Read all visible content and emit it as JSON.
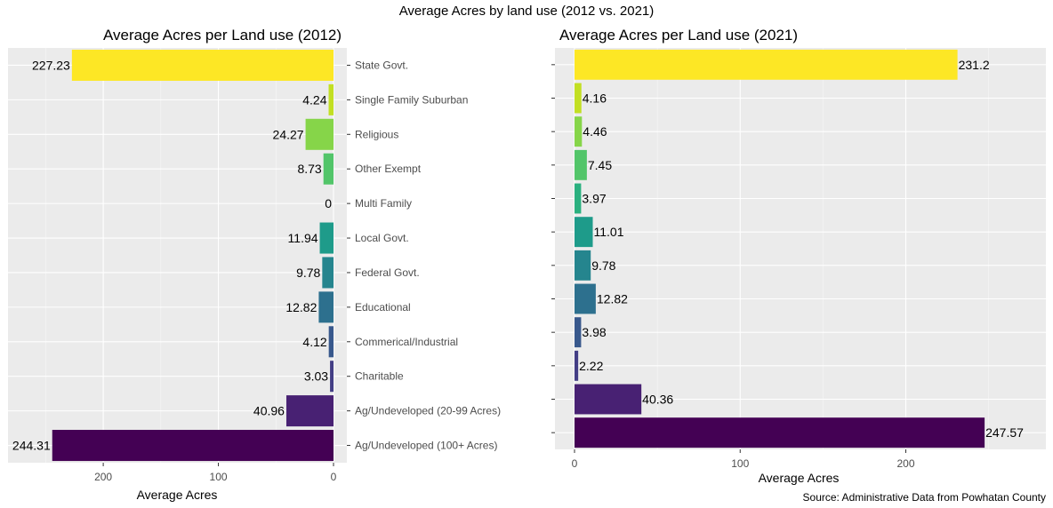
{
  "title": "Average Acres by land use (2012 vs. 2021)",
  "caption": "Source: Administrative Data from Powhatan County",
  "chart_data": [
    {
      "type": "bar",
      "orientation": "horizontal",
      "x_reversed": true,
      "title": "Average Acres per Land use (2012)",
      "xlabel": "Average Acres",
      "ylabel": "",
      "xlim": [
        0,
        255
      ],
      "xticks": [
        200,
        100,
        0
      ],
      "grid": true,
      "categories": [
        "State Govt.",
        "Single Family Suburban",
        "Religious",
        "Other Exempt",
        "Multi Family",
        "Local Govt.",
        "Federal Govt.",
        "Educational",
        "Commerical/Industrial",
        "Charitable",
        "Ag/Undeveloped (20-99 Acres)",
        "Ag/Undeveloped (100+ Acres)"
      ],
      "values": [
        227.23,
        4.24,
        24.27,
        8.73,
        0,
        11.94,
        9.78,
        12.82,
        4.12,
        3.03,
        40.96,
        244.31
      ],
      "value_labels": [
        "227.23",
        "4.24",
        "24.27",
        "8.73",
        "0",
        "11.94",
        "9.78",
        "12.82",
        "4.12",
        "3.03",
        "40.96",
        "244.31"
      ],
      "colors": [
        "#fde725",
        "#c2df23",
        "#86d549",
        "#52c569",
        "#2ab07f",
        "#1e9b8a",
        "#25858e",
        "#2d708e",
        "#38588c",
        "#433e85",
        "#482173",
        "#440154"
      ]
    },
    {
      "type": "bar",
      "orientation": "horizontal",
      "title": "Average Acres per Land use (2021)",
      "xlabel": "Average Acres",
      "ylabel": "",
      "xlim": [
        0,
        255
      ],
      "xticks": [
        0,
        100,
        200
      ],
      "grid": true,
      "values": [
        231.2,
        4.16,
        4.46,
        7.45,
        3.97,
        11.01,
        9.78,
        12.82,
        3.98,
        2.22,
        40.36,
        247.57
      ],
      "value_labels": [
        "231.2",
        "4.16",
        "4.46",
        "7.45",
        "3.97",
        "11.01",
        "9.78",
        "12.82",
        "3.98",
        "2.22",
        "40.36",
        "247.57"
      ],
      "colors": [
        "#fde725",
        "#c2df23",
        "#86d549",
        "#52c569",
        "#2ab07f",
        "#1e9b8a",
        "#25858e",
        "#2d708e",
        "#38588c",
        "#433e85",
        "#482173",
        "#440154"
      ]
    }
  ]
}
